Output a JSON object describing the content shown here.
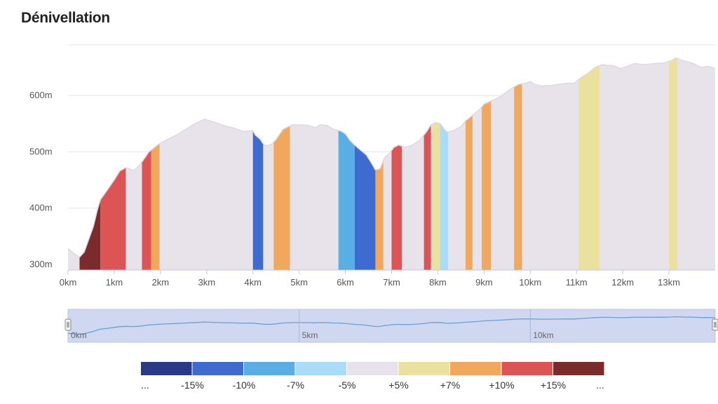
{
  "title": "Dénivellation",
  "chart_data": {
    "type": "area",
    "title": "Dénivellation",
    "xlabel": "",
    "ylabel": "",
    "x_unit": "km",
    "y_unit": "m",
    "xlim": [
      0,
      14
    ],
    "ylim": [
      290,
      690
    ],
    "x_ticks": [
      "0km",
      "1km",
      "2km",
      "3km",
      "4km",
      "5km",
      "6km",
      "7km",
      "8km",
      "9km",
      "10km",
      "11km",
      "12km",
      "13km"
    ],
    "y_ticks": [
      "300m",
      "400m",
      "500m",
      "600m"
    ],
    "profile": [
      [
        0,
        328
      ],
      [
        0.15,
        318
      ],
      [
        0.25,
        313
      ],
      [
        0.35,
        322
      ],
      [
        0.45,
        345
      ],
      [
        0.55,
        368
      ],
      [
        0.63,
        395
      ],
      [
        0.7,
        415
      ],
      [
        0.85,
        432
      ],
      [
        1.0,
        450
      ],
      [
        1.12,
        466
      ],
      [
        1.25,
        472
      ],
      [
        1.4,
        467
      ],
      [
        1.5,
        472
      ],
      [
        1.6,
        482
      ],
      [
        1.75,
        500
      ],
      [
        1.95,
        513
      ],
      [
        2.1,
        520
      ],
      [
        2.35,
        530
      ],
      [
        2.55,
        540
      ],
      [
        2.75,
        550
      ],
      [
        2.95,
        558
      ],
      [
        3.15,
        553
      ],
      [
        3.4,
        546
      ],
      [
        3.6,
        542
      ],
      [
        3.8,
        536
      ],
      [
        4.0,
        538
      ],
      [
        4.05,
        530
      ],
      [
        4.15,
        523
      ],
      [
        4.25,
        511
      ],
      [
        4.4,
        513
      ],
      [
        4.5,
        522
      ],
      [
        4.65,
        540
      ],
      [
        4.85,
        548
      ],
      [
        5.05,
        548
      ],
      [
        5.2,
        547
      ],
      [
        5.35,
        543
      ],
      [
        5.45,
        548
      ],
      [
        5.6,
        547
      ],
      [
        5.75,
        540
      ],
      [
        5.9,
        537
      ],
      [
        6.0,
        532
      ],
      [
        6.1,
        520
      ],
      [
        6.2,
        512
      ],
      [
        6.3,
        505
      ],
      [
        6.45,
        495
      ],
      [
        6.55,
        482
      ],
      [
        6.65,
        468
      ],
      [
        6.75,
        470
      ],
      [
        6.85,
        490
      ],
      [
        6.95,
        497
      ],
      [
        7.05,
        508
      ],
      [
        7.15,
        512
      ],
      [
        7.3,
        508
      ],
      [
        7.45,
        512
      ],
      [
        7.6,
        520
      ],
      [
        7.75,
        535
      ],
      [
        7.85,
        548
      ],
      [
        7.95,
        552
      ],
      [
        8.05,
        550
      ],
      [
        8.2,
        535
      ],
      [
        8.35,
        538
      ],
      [
        8.5,
        545
      ],
      [
        8.6,
        555
      ],
      [
        8.75,
        565
      ],
      [
        8.9,
        575
      ],
      [
        9.0,
        585
      ],
      [
        9.2,
        592
      ],
      [
        9.35,
        598
      ],
      [
        9.5,
        607
      ],
      [
        9.6,
        613
      ],
      [
        9.75,
        620
      ],
      [
        9.9,
        622
      ],
      [
        10.0,
        625
      ],
      [
        10.1,
        620
      ],
      [
        10.25,
        617
      ],
      [
        10.45,
        618
      ],
      [
        10.6,
        620
      ],
      [
        10.8,
        622
      ],
      [
        10.95,
        622
      ],
      [
        11.1,
        632
      ],
      [
        11.25,
        640
      ],
      [
        11.4,
        650
      ],
      [
        11.55,
        655
      ],
      [
        11.8,
        653
      ],
      [
        11.95,
        648
      ],
      [
        12.1,
        652
      ],
      [
        12.25,
        657
      ],
      [
        12.45,
        655
      ],
      [
        12.7,
        657
      ],
      [
        12.9,
        658
      ],
      [
        13.05,
        662
      ],
      [
        13.15,
        667
      ],
      [
        13.3,
        662
      ],
      [
        13.5,
        658
      ],
      [
        13.7,
        650
      ],
      [
        13.85,
        652
      ],
      [
        14.0,
        648
      ]
    ],
    "segments": [
      {
        "x0": 0.25,
        "x1": 0.7,
        "grade": ">+15%"
      },
      {
        "x0": 0.7,
        "x1": 1.25,
        "grade": "+10% – +15%"
      },
      {
        "x0": 1.6,
        "x1": 1.8,
        "grade": "+10% – +15%"
      },
      {
        "x0": 1.8,
        "x1": 1.98,
        "grade": "+7% – +10%"
      },
      {
        "x0": 4.0,
        "x1": 4.22,
        "grade": "-10% – -15%"
      },
      {
        "x0": 4.45,
        "x1": 4.8,
        "grade": "+7% – +10%"
      },
      {
        "x0": 5.85,
        "x1": 6.2,
        "grade": "-7% – -10%"
      },
      {
        "x0": 6.2,
        "x1": 6.65,
        "grade": "-10% – -15%"
      },
      {
        "x0": 6.65,
        "x1": 6.82,
        "grade": "+7% – +10%"
      },
      {
        "x0": 7.0,
        "x1": 7.22,
        "grade": "+10% – +15%"
      },
      {
        "x0": 7.7,
        "x1": 7.85,
        "grade": "+10% – +15%"
      },
      {
        "x0": 7.88,
        "x1": 8.05,
        "grade": "+5% – +7%"
      },
      {
        "x0": 8.05,
        "x1": 8.22,
        "grade": "-5% – -7%"
      },
      {
        "x0": 8.6,
        "x1": 8.75,
        "grade": "+7% – +10%"
      },
      {
        "x0": 8.95,
        "x1": 9.15,
        "grade": "+7% – +10%"
      },
      {
        "x0": 9.65,
        "x1": 9.82,
        "grade": "+7% – +10%"
      },
      {
        "x0": 11.05,
        "x1": 11.5,
        "grade": "+5% – +7%"
      },
      {
        "x0": 13.0,
        "x1": 13.18,
        "grade": "+5% – +7%"
      }
    ],
    "grid": true,
    "legend_position": "bottom"
  },
  "navigator": {
    "ticks": [
      "0km",
      "5km",
      "10km"
    ],
    "tick_km": [
      0,
      5,
      10
    ]
  },
  "legend": {
    "labels": [
      "...",
      "-15%",
      "-10%",
      "-7%",
      "-5%",
      "+5%",
      "+7%",
      "+10%",
      "+15%",
      "..."
    ],
    "colors": [
      "#2b3a86",
      "#3d6bd0",
      "#5aaee6",
      "#a9dcf8",
      "#e8e2ea",
      "#ebe19e",
      "#f2a85c",
      "#dc5454",
      "#7b2b2b"
    ]
  },
  "colors": {
    "flat": "#e8e2ea",
    "grid": "#e6e6e6",
    "navigator_bg": "#cfd8f0",
    "navigator_line": "#6a9fd8"
  }
}
